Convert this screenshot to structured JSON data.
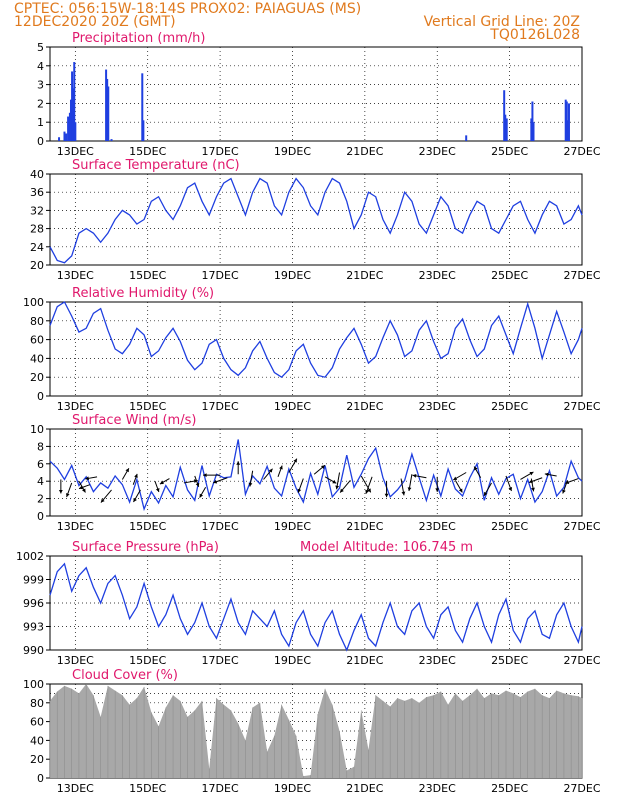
{
  "header": {
    "line1_left": "CPTEC:   056:15W-18:14S   PROX02: PAIAGUAS (MS)",
    "line2_left": "12DEC2020 20Z (GMT)",
    "line2_right": "Vertical Grid Line: 20Z",
    "line3_right": "TQ0126L028"
  },
  "colors": {
    "header": "#e07a1e",
    "panel_title": "#e0186c",
    "series": "#1f3fe0",
    "cloud": "#a8a8a8",
    "arrow": "#000000"
  },
  "x_axis": {
    "tick_labels": [
      "13DEC",
      "15DEC",
      "17DEC",
      "19DEC",
      "21DEC",
      "23DEC",
      "25DEC",
      "27DEC"
    ],
    "tick_days": [
      13,
      15,
      17,
      19,
      21,
      23,
      25,
      27
    ],
    "range_days": [
      12.3,
      27.0
    ]
  },
  "chart_data": [
    {
      "type": "bar",
      "title": "Precipitation (mm/h)",
      "ylim": [
        0,
        5
      ],
      "yticks": [
        "0",
        "1",
        "2",
        "3",
        "4",
        "5"
      ],
      "grid": true,
      "x": [
        12.55,
        12.7,
        12.75,
        12.8,
        12.85,
        12.88,
        12.91,
        12.94,
        12.97,
        13.0,
        13.85,
        13.88,
        13.91,
        14.0,
        14.85,
        14.88,
        23.8,
        24.85,
        24.88,
        24.92,
        25.6,
        25.63,
        25.66,
        26.55,
        26.58,
        26.61,
        26.64
      ],
      "values": [
        0.2,
        0.5,
        0.4,
        1.3,
        1.5,
        2.2,
        3.7,
        2.8,
        4.2,
        1.0,
        3.8,
        3.3,
        2.9,
        0.1,
        3.6,
        1.1,
        0.3,
        2.7,
        1.4,
        1.2,
        1.2,
        2.1,
        1.0,
        2.2,
        2.1,
        1.1,
        2.0
      ]
    },
    {
      "type": "line",
      "title": "Surface Temperature (nC)",
      "ylim": [
        20,
        40
      ],
      "yticks": [
        "20",
        "24",
        "28",
        "32",
        "36",
        "40"
      ],
      "grid": true,
      "x": [
        12.3,
        12.5,
        12.7,
        12.9,
        13.1,
        13.3,
        13.5,
        13.7,
        13.9,
        14.1,
        14.3,
        14.5,
        14.7,
        14.9,
        15.1,
        15.3,
        15.5,
        15.7,
        15.9,
        16.1,
        16.3,
        16.5,
        16.7,
        16.9,
        17.1,
        17.3,
        17.5,
        17.7,
        17.9,
        18.1,
        18.3,
        18.5,
        18.7,
        18.9,
        19.1,
        19.3,
        19.5,
        19.7,
        19.9,
        20.1,
        20.3,
        20.5,
        20.7,
        20.9,
        21.1,
        21.3,
        21.5,
        21.7,
        21.9,
        22.1,
        22.3,
        22.5,
        22.7,
        22.9,
        23.1,
        23.3,
        23.5,
        23.7,
        23.9,
        24.1,
        24.3,
        24.5,
        24.7,
        24.9,
        25.1,
        25.3,
        25.5,
        25.7,
        25.9,
        26.1,
        26.3,
        26.5,
        26.7,
        26.9,
        27.0
      ],
      "values": [
        24,
        21,
        20.5,
        22,
        27,
        28,
        27,
        25,
        27,
        30,
        32,
        31,
        29,
        30,
        34,
        35,
        32,
        30,
        33,
        37,
        38,
        34,
        31,
        35,
        38,
        39,
        35,
        31,
        36,
        39,
        38,
        33,
        31,
        36,
        39,
        37,
        33,
        31,
        36,
        39,
        38,
        34,
        28,
        31,
        36,
        35,
        30,
        27,
        31,
        36,
        34,
        29,
        27,
        31,
        35,
        33,
        28,
        27,
        31,
        34,
        33,
        28,
        27,
        30,
        33,
        34,
        30,
        27,
        31,
        34,
        33,
        29,
        30,
        33,
        31
      ]
    },
    {
      "type": "line",
      "title": "Relative Humidity (%)",
      "ylim": [
        0,
        100
      ],
      "yticks": [
        "0",
        "20",
        "40",
        "60",
        "80",
        "100"
      ],
      "grid": true,
      "x": [
        12.3,
        12.5,
        12.7,
        12.9,
        13.1,
        13.3,
        13.5,
        13.7,
        13.9,
        14.1,
        14.3,
        14.5,
        14.7,
        14.9,
        15.1,
        15.3,
        15.5,
        15.7,
        15.9,
        16.1,
        16.3,
        16.5,
        16.7,
        16.9,
        17.1,
        17.3,
        17.5,
        17.7,
        17.9,
        18.1,
        18.3,
        18.5,
        18.7,
        18.9,
        19.1,
        19.3,
        19.5,
        19.7,
        19.9,
        20.1,
        20.3,
        20.5,
        20.7,
        20.9,
        21.1,
        21.3,
        21.5,
        21.7,
        21.9,
        22.1,
        22.3,
        22.5,
        22.7,
        22.9,
        23.1,
        23.3,
        23.5,
        23.7,
        23.9,
        24.1,
        24.3,
        24.5,
        24.7,
        24.9,
        25.1,
        25.3,
        25.5,
        25.7,
        25.9,
        26.1,
        26.3,
        26.5,
        26.7,
        26.9,
        27.0
      ],
      "values": [
        75,
        95,
        100,
        85,
        68,
        72,
        88,
        93,
        70,
        50,
        45,
        55,
        72,
        65,
        42,
        48,
        62,
        72,
        58,
        38,
        28,
        35,
        55,
        60,
        40,
        28,
        22,
        30,
        48,
        58,
        40,
        25,
        20,
        28,
        48,
        55,
        35,
        22,
        20,
        30,
        50,
        62,
        72,
        55,
        35,
        42,
        62,
        80,
        65,
        42,
        48,
        70,
        80,
        58,
        40,
        45,
        72,
        82,
        60,
        42,
        50,
        75,
        85,
        65,
        45,
        72,
        98,
        72,
        40,
        65,
        90,
        68,
        45,
        60,
        72
      ]
    },
    {
      "type": "line",
      "title": "Surface Wind (m/s)",
      "ylim": [
        0,
        10
      ],
      "yticks": [
        "0",
        "2",
        "4",
        "6",
        "8",
        "10"
      ],
      "grid": true,
      "x": [
        12.3,
        12.5,
        12.7,
        12.9,
        13.1,
        13.3,
        13.5,
        13.7,
        13.9,
        14.1,
        14.3,
        14.5,
        14.7,
        14.9,
        15.1,
        15.3,
        15.5,
        15.7,
        15.9,
        16.1,
        16.3,
        16.5,
        16.7,
        16.9,
        17.1,
        17.3,
        17.5,
        17.7,
        17.9,
        18.1,
        18.3,
        18.5,
        18.7,
        18.9,
        19.1,
        19.3,
        19.5,
        19.7,
        19.9,
        20.1,
        20.3,
        20.5,
        20.7,
        20.9,
        21.1,
        21.3,
        21.5,
        21.7,
        21.9,
        22.1,
        22.3,
        22.5,
        22.7,
        22.9,
        23.1,
        23.3,
        23.5,
        23.7,
        23.9,
        24.1,
        24.3,
        24.5,
        24.7,
        24.9,
        25.1,
        25.3,
        25.5,
        25.7,
        25.9,
        26.1,
        26.3,
        26.5,
        26.7,
        26.9,
        27.0
      ],
      "values": [
        6.3,
        5.5,
        4.2,
        5.8,
        3.5,
        4.5,
        2.8,
        3.8,
        3.2,
        4.6,
        3.6,
        1.6,
        4.2,
        0.8,
        2.8,
        1.5,
        3.5,
        2.2,
        5.6,
        3.0,
        1.8,
        5.8,
        2.3,
        4.8,
        4.4,
        4.5,
        8.8,
        2.5,
        4.6,
        3.7,
        5.7,
        3.2,
        2.3,
        5.4,
        3.2,
        1.6,
        4.9,
        2.5,
        5.8,
        2.2,
        3.2,
        7.0,
        3.3,
        4.8,
        6.6,
        7.8,
        4.4,
        2.2,
        3.0,
        4.1,
        7.1,
        4.4,
        1.8,
        4.7,
        2.3,
        5.4,
        3.1,
        2.3,
        4.4,
        6.0,
        1.8,
        4.4,
        2.5,
        4.3,
        4.8,
        2.0,
        4.2,
        1.6,
        2.8,
        5.2,
        2.3,
        3.3,
        6.3,
        4.4,
        4.0
      ],
      "arrows": {
        "x": [
          12.6,
          12.9,
          13.1,
          13.4,
          13.6,
          14.0,
          14.3,
          14.6,
          14.8,
          15.2,
          15.6,
          16.0,
          16.3,
          16.6,
          17.0,
          17.2,
          17.5,
          17.9,
          18.2,
          18.6,
          18.9,
          19.3,
          19.6,
          19.9,
          20.3,
          20.6,
          20.9,
          21.2,
          21.6,
          22.0,
          22.3,
          22.7,
          23.0,
          23.5,
          23.8,
          24.2,
          24.5,
          24.9,
          25.3,
          25.6,
          25.9,
          26.3,
          26.6,
          26.9
        ],
        "y": [
          4.2,
          3.8,
          4.0,
          3.6,
          4.5,
          3.0,
          4.2,
          3.6,
          3.0,
          4.0,
          4.3,
          3.8,
          4.6,
          3.3,
          4.7,
          4.4,
          4.8,
          5.2,
          4.2,
          4.5,
          5.0,
          4.3,
          4.8,
          4.5,
          5.0,
          4.1,
          4.6,
          4.5,
          4.0,
          4.3,
          4.8,
          4.4,
          4.5,
          4.1,
          5.0,
          4.4,
          3.8,
          4.6,
          4.2,
          4.3,
          4.4,
          4.6,
          4.1,
          4.3
        ],
        "dir": [
          270,
          250,
          300,
          200,
          190,
          230,
          60,
          70,
          240,
          290,
          210,
          10,
          290,
          240,
          180,
          200,
          90,
          260,
          50,
          70,
          60,
          250,
          40,
          330,
          260,
          230,
          300,
          250,
          270,
          280,
          260,
          170,
          270,
          300,
          210,
          120,
          240,
          290,
          30,
          280,
          200,
          170,
          250,
          200
        ],
        "speed": [
          2.0,
          2.2,
          1.8,
          1.5,
          1.6,
          2.5,
          1.8,
          1.5,
          2.0,
          1.5,
          1.4,
          2.0,
          1.5,
          1.6,
          2.6,
          2.2,
          1.8,
          2.4,
          2.0,
          1.6,
          2.4,
          2.2,
          2.0,
          1.8,
          2.6,
          2.4,
          3.0,
          2.8,
          2.4,
          2.6,
          2.6,
          2.0,
          2.2,
          2.0,
          2.2,
          1.8,
          2.2,
          2.4,
          2.2,
          1.8,
          2.0,
          1.6,
          2.0,
          2.0
        ]
      }
    },
    {
      "type": "line",
      "title": "Surface Pressure (hPa)",
      "subtitle": "Model Altitude: 106.745 m",
      "ylim": [
        990,
        1002
      ],
      "yticks": [
        "990",
        "993",
        "996",
        "999",
        "1002"
      ],
      "grid": true,
      "x": [
        12.3,
        12.5,
        12.7,
        12.9,
        13.1,
        13.3,
        13.5,
        13.7,
        13.9,
        14.1,
        14.3,
        14.5,
        14.7,
        14.9,
        15.1,
        15.3,
        15.5,
        15.7,
        15.9,
        16.1,
        16.3,
        16.5,
        16.7,
        16.9,
        17.1,
        17.3,
        17.5,
        17.7,
        17.9,
        18.1,
        18.3,
        18.5,
        18.7,
        18.9,
        19.1,
        19.3,
        19.5,
        19.7,
        19.9,
        20.1,
        20.3,
        20.5,
        20.7,
        20.9,
        21.1,
        21.3,
        21.5,
        21.7,
        21.9,
        22.1,
        22.3,
        22.5,
        22.7,
        22.9,
        23.1,
        23.3,
        23.5,
        23.7,
        23.9,
        24.1,
        24.3,
        24.5,
        24.7,
        24.9,
        25.1,
        25.3,
        25.5,
        25.7,
        25.9,
        26.1,
        26.3,
        26.5,
        26.7,
        26.9,
        27.0
      ],
      "values": [
        997,
        1000,
        1001,
        997.5,
        999.5,
        1000.5,
        998,
        996,
        998.5,
        999.5,
        997,
        994,
        995.5,
        998.5,
        995.5,
        993,
        994.5,
        997,
        994,
        992,
        993.5,
        996,
        993,
        991.5,
        994,
        996.5,
        993.5,
        992,
        995,
        994,
        993,
        995,
        992,
        990.5,
        993.5,
        995,
        992,
        990.5,
        993.5,
        995,
        992,
        990,
        992.5,
        994.5,
        991.5,
        990.5,
        993.5,
        996,
        993,
        992,
        995,
        996,
        993,
        991.5,
        994.5,
        995.5,
        992.5,
        991,
        994,
        996,
        993,
        991,
        994.5,
        996.5,
        992.5,
        991,
        994,
        995,
        992,
        991.5,
        994.5,
        996,
        993,
        991,
        993
      ]
    },
    {
      "type": "area",
      "title": "Cloud Cover (%)",
      "ylim": [
        0,
        100
      ],
      "yticks": [
        "0",
        "10",
        "20",
        "30",
        "40",
        "50",
        "60",
        "70",
        "80",
        "90",
        "100"
      ],
      "ytick_labels_shown": [
        "0",
        "20",
        "40",
        "60",
        "80",
        "100"
      ],
      "grid": true,
      "x": [
        12.3,
        12.5,
        12.7,
        12.9,
        13.1,
        13.3,
        13.5,
        13.7,
        13.9,
        14.1,
        14.3,
        14.5,
        14.7,
        14.9,
        15.1,
        15.3,
        15.5,
        15.7,
        15.9,
        16.1,
        16.3,
        16.5,
        16.7,
        16.9,
        17.1,
        17.3,
        17.5,
        17.7,
        17.9,
        18.1,
        18.3,
        18.5,
        18.7,
        18.9,
        19.1,
        19.3,
        19.5,
        19.7,
        19.9,
        20.1,
        20.3,
        20.5,
        20.7,
        20.9,
        21.1,
        21.3,
        21.5,
        21.7,
        21.9,
        22.1,
        22.3,
        22.5,
        22.7,
        22.9,
        23.1,
        23.3,
        23.5,
        23.7,
        23.9,
        24.1,
        24.3,
        24.5,
        24.7,
        24.9,
        25.1,
        25.3,
        25.5,
        25.7,
        25.9,
        26.1,
        26.3,
        26.5,
        26.7,
        26.9,
        27.0
      ],
      "values": [
        82,
        92,
        98,
        95,
        90,
        100,
        88,
        65,
        98,
        93,
        88,
        78,
        85,
        97,
        70,
        55,
        75,
        88,
        82,
        65,
        72,
        82,
        10,
        85,
        78,
        72,
        58,
        40,
        75,
        80,
        28,
        45,
        78,
        62,
        45,
        2,
        3,
        68,
        95,
        78,
        50,
        8,
        12,
        72,
        30,
        88,
        82,
        76,
        85,
        82,
        85,
        80,
        86,
        88,
        92,
        78,
        90,
        82,
        88,
        95,
        85,
        90,
        88,
        93,
        90,
        86,
        92,
        95,
        88,
        85,
        93,
        90,
        88,
        87,
        85
      ]
    }
  ]
}
